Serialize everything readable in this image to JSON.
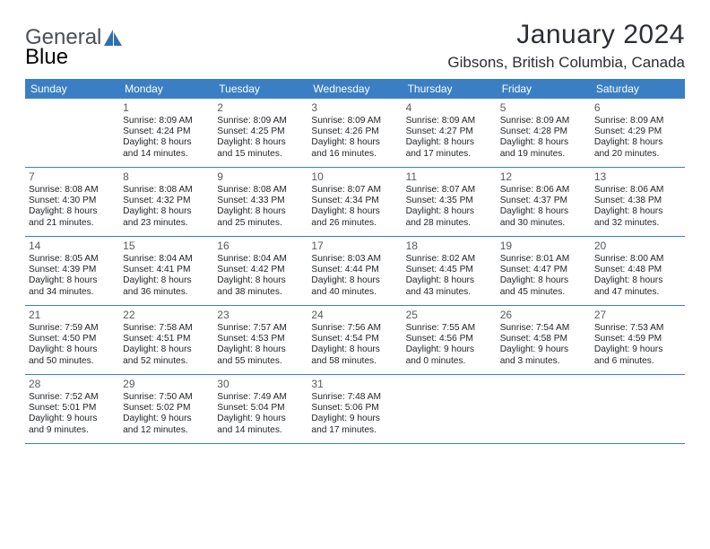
{
  "branding": {
    "word1": "General",
    "word2": "Blue",
    "color1": "#4a4f55",
    "color2": "#3a7fc4"
  },
  "header": {
    "title": "January 2024",
    "location": "Gibsons, British Columbia, Canada",
    "title_fontsize": 30,
    "location_fontsize": 17,
    "text_color": "#2b2e33"
  },
  "calendar": {
    "header_bg": "#3a7fc4",
    "header_text_color": "#ffffff",
    "divider_color": "#3a7fc4",
    "body_text_color": "#222529",
    "daynum_color": "#555a60",
    "days_of_week": [
      "Sunday",
      "Monday",
      "Tuesday",
      "Wednesday",
      "Thursday",
      "Friday",
      "Saturday"
    ],
    "weeks": [
      [
        {
          "n": "",
          "l1": "",
          "l2": "",
          "l3": "",
          "l4": ""
        },
        {
          "n": "1",
          "l1": "Sunrise: 8:09 AM",
          "l2": "Sunset: 4:24 PM",
          "l3": "Daylight: 8 hours",
          "l4": "and 14 minutes."
        },
        {
          "n": "2",
          "l1": "Sunrise: 8:09 AM",
          "l2": "Sunset: 4:25 PM",
          "l3": "Daylight: 8 hours",
          "l4": "and 15 minutes."
        },
        {
          "n": "3",
          "l1": "Sunrise: 8:09 AM",
          "l2": "Sunset: 4:26 PM",
          "l3": "Daylight: 8 hours",
          "l4": "and 16 minutes."
        },
        {
          "n": "4",
          "l1": "Sunrise: 8:09 AM",
          "l2": "Sunset: 4:27 PM",
          "l3": "Daylight: 8 hours",
          "l4": "and 17 minutes."
        },
        {
          "n": "5",
          "l1": "Sunrise: 8:09 AM",
          "l2": "Sunset: 4:28 PM",
          "l3": "Daylight: 8 hours",
          "l4": "and 19 minutes."
        },
        {
          "n": "6",
          "l1": "Sunrise: 8:09 AM",
          "l2": "Sunset: 4:29 PM",
          "l3": "Daylight: 8 hours",
          "l4": "and 20 minutes."
        }
      ],
      [
        {
          "n": "7",
          "l1": "Sunrise: 8:08 AM",
          "l2": "Sunset: 4:30 PM",
          "l3": "Daylight: 8 hours",
          "l4": "and 21 minutes."
        },
        {
          "n": "8",
          "l1": "Sunrise: 8:08 AM",
          "l2": "Sunset: 4:32 PM",
          "l3": "Daylight: 8 hours",
          "l4": "and 23 minutes."
        },
        {
          "n": "9",
          "l1": "Sunrise: 8:08 AM",
          "l2": "Sunset: 4:33 PM",
          "l3": "Daylight: 8 hours",
          "l4": "and 25 minutes."
        },
        {
          "n": "10",
          "l1": "Sunrise: 8:07 AM",
          "l2": "Sunset: 4:34 PM",
          "l3": "Daylight: 8 hours",
          "l4": "and 26 minutes."
        },
        {
          "n": "11",
          "l1": "Sunrise: 8:07 AM",
          "l2": "Sunset: 4:35 PM",
          "l3": "Daylight: 8 hours",
          "l4": "and 28 minutes."
        },
        {
          "n": "12",
          "l1": "Sunrise: 8:06 AM",
          "l2": "Sunset: 4:37 PM",
          "l3": "Daylight: 8 hours",
          "l4": "and 30 minutes."
        },
        {
          "n": "13",
          "l1": "Sunrise: 8:06 AM",
          "l2": "Sunset: 4:38 PM",
          "l3": "Daylight: 8 hours",
          "l4": "and 32 minutes."
        }
      ],
      [
        {
          "n": "14",
          "l1": "Sunrise: 8:05 AM",
          "l2": "Sunset: 4:39 PM",
          "l3": "Daylight: 8 hours",
          "l4": "and 34 minutes."
        },
        {
          "n": "15",
          "l1": "Sunrise: 8:04 AM",
          "l2": "Sunset: 4:41 PM",
          "l3": "Daylight: 8 hours",
          "l4": "and 36 minutes."
        },
        {
          "n": "16",
          "l1": "Sunrise: 8:04 AM",
          "l2": "Sunset: 4:42 PM",
          "l3": "Daylight: 8 hours",
          "l4": "and 38 minutes."
        },
        {
          "n": "17",
          "l1": "Sunrise: 8:03 AM",
          "l2": "Sunset: 4:44 PM",
          "l3": "Daylight: 8 hours",
          "l4": "and 40 minutes."
        },
        {
          "n": "18",
          "l1": "Sunrise: 8:02 AM",
          "l2": "Sunset: 4:45 PM",
          "l3": "Daylight: 8 hours",
          "l4": "and 43 minutes."
        },
        {
          "n": "19",
          "l1": "Sunrise: 8:01 AM",
          "l2": "Sunset: 4:47 PM",
          "l3": "Daylight: 8 hours",
          "l4": "and 45 minutes."
        },
        {
          "n": "20",
          "l1": "Sunrise: 8:00 AM",
          "l2": "Sunset: 4:48 PM",
          "l3": "Daylight: 8 hours",
          "l4": "and 47 minutes."
        }
      ],
      [
        {
          "n": "21",
          "l1": "Sunrise: 7:59 AM",
          "l2": "Sunset: 4:50 PM",
          "l3": "Daylight: 8 hours",
          "l4": "and 50 minutes."
        },
        {
          "n": "22",
          "l1": "Sunrise: 7:58 AM",
          "l2": "Sunset: 4:51 PM",
          "l3": "Daylight: 8 hours",
          "l4": "and 52 minutes."
        },
        {
          "n": "23",
          "l1": "Sunrise: 7:57 AM",
          "l2": "Sunset: 4:53 PM",
          "l3": "Daylight: 8 hours",
          "l4": "and 55 minutes."
        },
        {
          "n": "24",
          "l1": "Sunrise: 7:56 AM",
          "l2": "Sunset: 4:54 PM",
          "l3": "Daylight: 8 hours",
          "l4": "and 58 minutes."
        },
        {
          "n": "25",
          "l1": "Sunrise: 7:55 AM",
          "l2": "Sunset: 4:56 PM",
          "l3": "Daylight: 9 hours",
          "l4": "and 0 minutes."
        },
        {
          "n": "26",
          "l1": "Sunrise: 7:54 AM",
          "l2": "Sunset: 4:58 PM",
          "l3": "Daylight: 9 hours",
          "l4": "and 3 minutes."
        },
        {
          "n": "27",
          "l1": "Sunrise: 7:53 AM",
          "l2": "Sunset: 4:59 PM",
          "l3": "Daylight: 9 hours",
          "l4": "and 6 minutes."
        }
      ],
      [
        {
          "n": "28",
          "l1": "Sunrise: 7:52 AM",
          "l2": "Sunset: 5:01 PM",
          "l3": "Daylight: 9 hours",
          "l4": "and 9 minutes."
        },
        {
          "n": "29",
          "l1": "Sunrise: 7:50 AM",
          "l2": "Sunset: 5:02 PM",
          "l3": "Daylight: 9 hours",
          "l4": "and 12 minutes."
        },
        {
          "n": "30",
          "l1": "Sunrise: 7:49 AM",
          "l2": "Sunset: 5:04 PM",
          "l3": "Daylight: 9 hours",
          "l4": "and 14 minutes."
        },
        {
          "n": "31",
          "l1": "Sunrise: 7:48 AM",
          "l2": "Sunset: 5:06 PM",
          "l3": "Daylight: 9 hours",
          "l4": "and 17 minutes."
        },
        {
          "n": "",
          "l1": "",
          "l2": "",
          "l3": "",
          "l4": ""
        },
        {
          "n": "",
          "l1": "",
          "l2": "",
          "l3": "",
          "l4": ""
        },
        {
          "n": "",
          "l1": "",
          "l2": "",
          "l3": "",
          "l4": ""
        }
      ]
    ]
  }
}
